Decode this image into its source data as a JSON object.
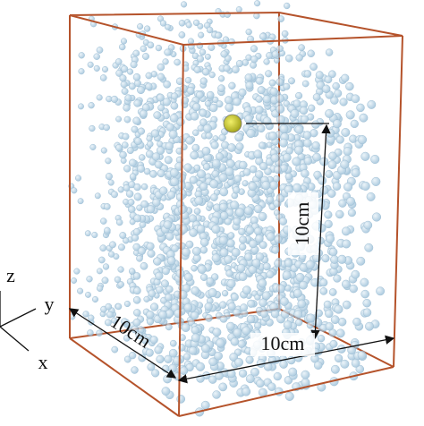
{
  "labels": {
    "depth": "10cm",
    "width": "10cm",
    "height": "10cm"
  },
  "axes": {
    "z": "z",
    "y": "y",
    "x": "x"
  }
}
